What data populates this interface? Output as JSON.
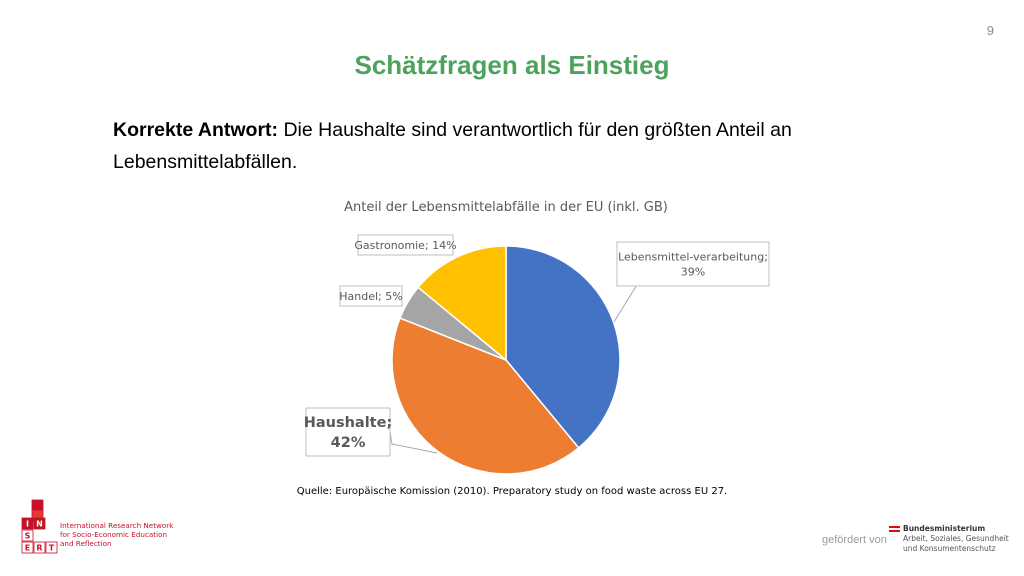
{
  "slide": {
    "page_number": "9",
    "title": "Schätzfragen als Einstieg",
    "answer_bold": "Korrekte Antwort:",
    "answer_text": " Die Haushalte sind verantwortlich für den größten Anteil an Lebensmittelabfällen.",
    "source": "Quelle: Europäische Komission (2010). Preparatory study on food waste across EU 27."
  },
  "chart_data": {
    "type": "pie",
    "title": "Anteil der Lebensmittelabfälle in der EU (inkl. GB)",
    "slices": [
      {
        "label": "Lebensmittel-verarbeitung",
        "label_lines": [
          "Lebensmittel-verarbeitung;",
          "39%"
        ],
        "value": 39,
        "color": "#4472c4"
      },
      {
        "label": "Haushalte",
        "label_lines": [
          "Haushalte;",
          "42%"
        ],
        "value": 42,
        "color": "#ed7d31"
      },
      {
        "label": "Handel",
        "label_lines": [
          "Handel; 5%"
        ],
        "value": 5,
        "color": "#a5a5a5"
      },
      {
        "label": "Gastronomie",
        "label_lines": [
          "Gastronomie; 14%"
        ],
        "value": 14,
        "color": "#ffc000"
      }
    ]
  },
  "logo": {
    "letters": [
      "I",
      "N",
      "S",
      "E",
      "R",
      "T"
    ],
    "lines": [
      "International Research Network",
      "for Socio-Economic Education",
      "and Reflection"
    ]
  },
  "footer": {
    "funded_by": "gefördert von",
    "ministry_lines": [
      "Bundesministerium",
      "Arbeit, Soziales, Gesundheit",
      "und Konsumentenschutz"
    ]
  }
}
